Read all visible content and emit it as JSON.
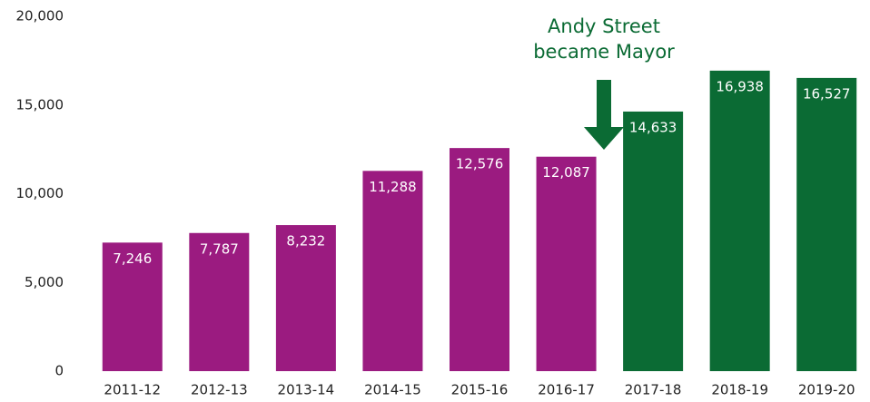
{
  "chart_data": {
    "type": "bar",
    "categories": [
      "2011-12",
      "2012-13",
      "2013-14",
      "2014-15",
      "2015-16",
      "2016-17",
      "2017-18",
      "2018-19",
      "2019-20"
    ],
    "values": [
      7246,
      7787,
      8232,
      11288,
      12576,
      12087,
      14633,
      16938,
      16527
    ],
    "value_labels": [
      "7,246",
      "7,787",
      "8,232",
      "11,288",
      "12,576",
      "12,087",
      "14,633",
      "16,938",
      "16,527"
    ],
    "colors": [
      "#9b1b80",
      "#9b1b80",
      "#9b1b80",
      "#9b1b80",
      "#9b1b80",
      "#9b1b80",
      "#0b6b34",
      "#0b6b34",
      "#0b6b34"
    ],
    "ylim": [
      0,
      20000
    ],
    "yticks": [
      0,
      {
        "value": 5000,
        "label": "5,000"
      },
      {
        "value": 10000,
        "label": "10,000"
      },
      {
        "value": 15000,
        "label": "15,000"
      },
      {
        "value": 20000,
        "label": "20,000"
      }
    ],
    "grid": false,
    "annotation": [
      "Andy Street",
      "became Mayor"
    ]
  }
}
